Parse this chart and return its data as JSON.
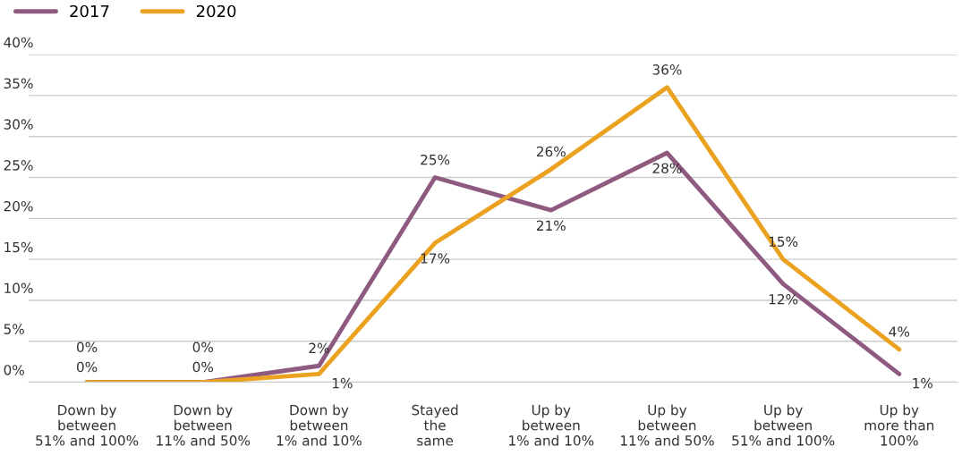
{
  "chart_data": {
    "type": "line",
    "categories": [
      "Down by\nbetween\n51% and 100%",
      "Down by\nbetween\n11% and 50%",
      "Down by\nbetween\n1% and 10%",
      "Stayed\nthe\nsame",
      "Up by\nbetween\n1% and 10%",
      "Up by\nbetween\n11% and 50%",
      "Up by\nbetween\n51% and 100%",
      "Up by\nmore than\n100%"
    ],
    "series": [
      {
        "name": "2017",
        "color": "#8f5a80",
        "values": [
          0,
          0,
          2,
          25,
          21,
          28,
          12,
          1
        ],
        "value_labels": [
          "0%",
          "0%",
          "2%",
          "25%",
          "21%",
          "28%",
          "12%",
          "1%"
        ]
      },
      {
        "name": "2020",
        "color": "#eba220",
        "values": [
          0,
          0,
          1,
          17,
          26,
          36,
          15,
          4
        ],
        "value_labels": [
          "0%",
          "0%",
          "1%",
          "17%",
          "26%",
          "36%",
          "15%",
          "4%"
        ]
      }
    ],
    "ylim": [
      0,
      40
    ],
    "yticks": [
      {
        "value": 0,
        "label": "0%"
      },
      {
        "value": 5,
        "label": "5%"
      },
      {
        "value": 10,
        "label": "10%"
      },
      {
        "value": 15,
        "label": "15%"
      },
      {
        "value": 20,
        "label": "20%"
      },
      {
        "value": 25,
        "label": "25%"
      },
      {
        "value": 30,
        "label": "30%"
      },
      {
        "value": 35,
        "label": "35%"
      },
      {
        "value": 40,
        "label": "40%"
      }
    ],
    "grid": "y",
    "legend": "top left",
    "marker": "none",
    "line_style": "solid"
  }
}
